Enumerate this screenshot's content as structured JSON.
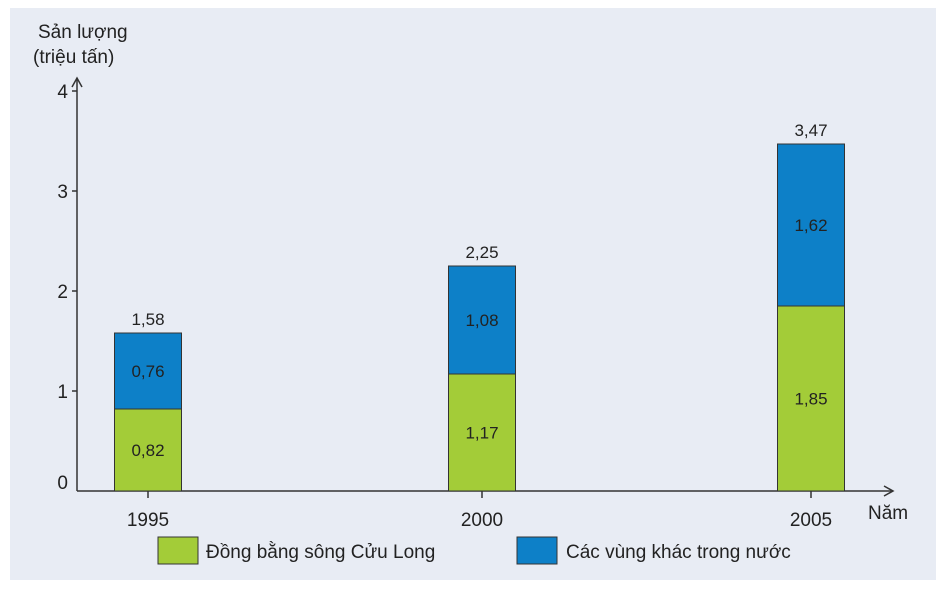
{
  "colors": {
    "series_dbscl": "#a3cc38",
    "series_other": "#0d80c8",
    "background": "#e8ecf4",
    "axis": "#333333"
  },
  "chart_data": {
    "type": "bar",
    "stacked": true,
    "title": "",
    "ylabel_line1": "Sản lượng",
    "ylabel_line2": "(triệu tấn)",
    "xlabel": "Năm",
    "categories": [
      "1995",
      "2000",
      "2005"
    ],
    "ylim": [
      0,
      4
    ],
    "yticks": [
      "0",
      "1",
      "2",
      "3",
      "4"
    ],
    "series": [
      {
        "name": "Đồng bằng sông Cửu Long",
        "values": [
          0.82,
          1.17,
          1.85
        ],
        "labels": [
          "0,82",
          "1,17",
          "1,85"
        ],
        "color": "#a3cc38"
      },
      {
        "name": "Các vùng khác trong nước",
        "values": [
          0.76,
          1.08,
          1.62
        ],
        "labels": [
          "0,76",
          "1,08",
          "1,62"
        ],
        "color": "#0d80c8"
      }
    ],
    "totals": [
      1.58,
      2.25,
      3.47
    ],
    "total_labels": [
      "1,58",
      "2,25",
      "3,47"
    ],
    "legend_position": "bottom"
  }
}
